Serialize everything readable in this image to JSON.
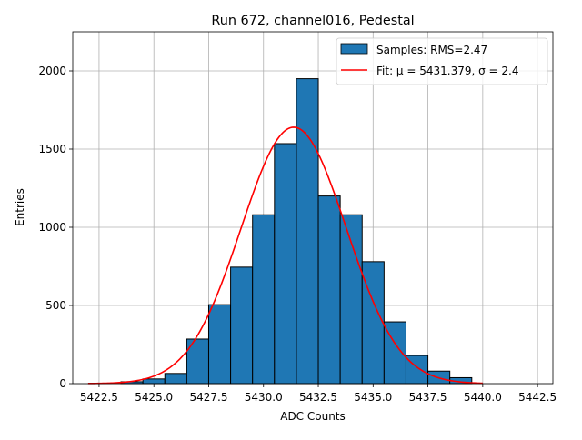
{
  "chart_data": {
    "type": "bar",
    "title": "Run 672, channel016, Pedestal",
    "xlabel": "ADC Counts",
    "ylabel": "Entries",
    "xlim": [
      5421.3,
      5443.2
    ],
    "ylim": [
      0,
      2250
    ],
    "xticks": [
      5422.5,
      5425.0,
      5427.5,
      5430.0,
      5432.5,
      5435.0,
      5437.5,
      5440.0,
      5442.5
    ],
    "xtick_labels": [
      "5422.5",
      "5425.0",
      "5427.5",
      "5430.0",
      "5432.5",
      "5435.0",
      "5437.5",
      "5440.0",
      "5442.5"
    ],
    "yticks": [
      0,
      500,
      1000,
      1500,
      2000
    ],
    "ytick_labels": [
      "0",
      "500",
      "1000",
      "1500",
      "2000"
    ],
    "grid": true,
    "legend_position": "top-right",
    "bin_width": 1.0,
    "bins": [
      {
        "x": 5424.0,
        "count": 12
      },
      {
        "x": 5425.0,
        "count": 30
      },
      {
        "x": 5426.0,
        "count": 65
      },
      {
        "x": 5427.0,
        "count": 285
      },
      {
        "x": 5428.0,
        "count": 505
      },
      {
        "x": 5429.0,
        "count": 745
      },
      {
        "x": 5430.0,
        "count": 1080
      },
      {
        "x": 5431.0,
        "count": 1535
      },
      {
        "x": 5432.0,
        "count": 1950
      },
      {
        "x": 5433.0,
        "count": 1200
      },
      {
        "x": 5434.0,
        "count": 1080
      },
      {
        "x": 5435.0,
        "count": 780
      },
      {
        "x": 5436.0,
        "count": 395
      },
      {
        "x": 5437.0,
        "count": 180
      },
      {
        "x": 5438.0,
        "count": 80
      },
      {
        "x": 5439.0,
        "count": 38
      }
    ],
    "fit": {
      "mu": 5431.379,
      "sigma": 2.4,
      "amplitude": 1640,
      "x_range": [
        5422.0,
        5440.0
      ]
    },
    "series": [
      {
        "name": "Samples: RMS=2.47",
        "kind": "histogram",
        "color": "#1f77b4"
      },
      {
        "name": "Fit: μ = 5431.379, σ = 2.4",
        "kind": "line",
        "color": "#ff0000"
      }
    ],
    "legend": {
      "samples_label": "Samples: RMS=2.47",
      "fit_label": "Fit: μ = 5431.379, σ = 2.4"
    },
    "colors": {
      "bar_fill": "#1f77b4",
      "bar_edge": "#000000",
      "fit_line": "#ff0000",
      "grid": "#b0b0b0"
    }
  }
}
